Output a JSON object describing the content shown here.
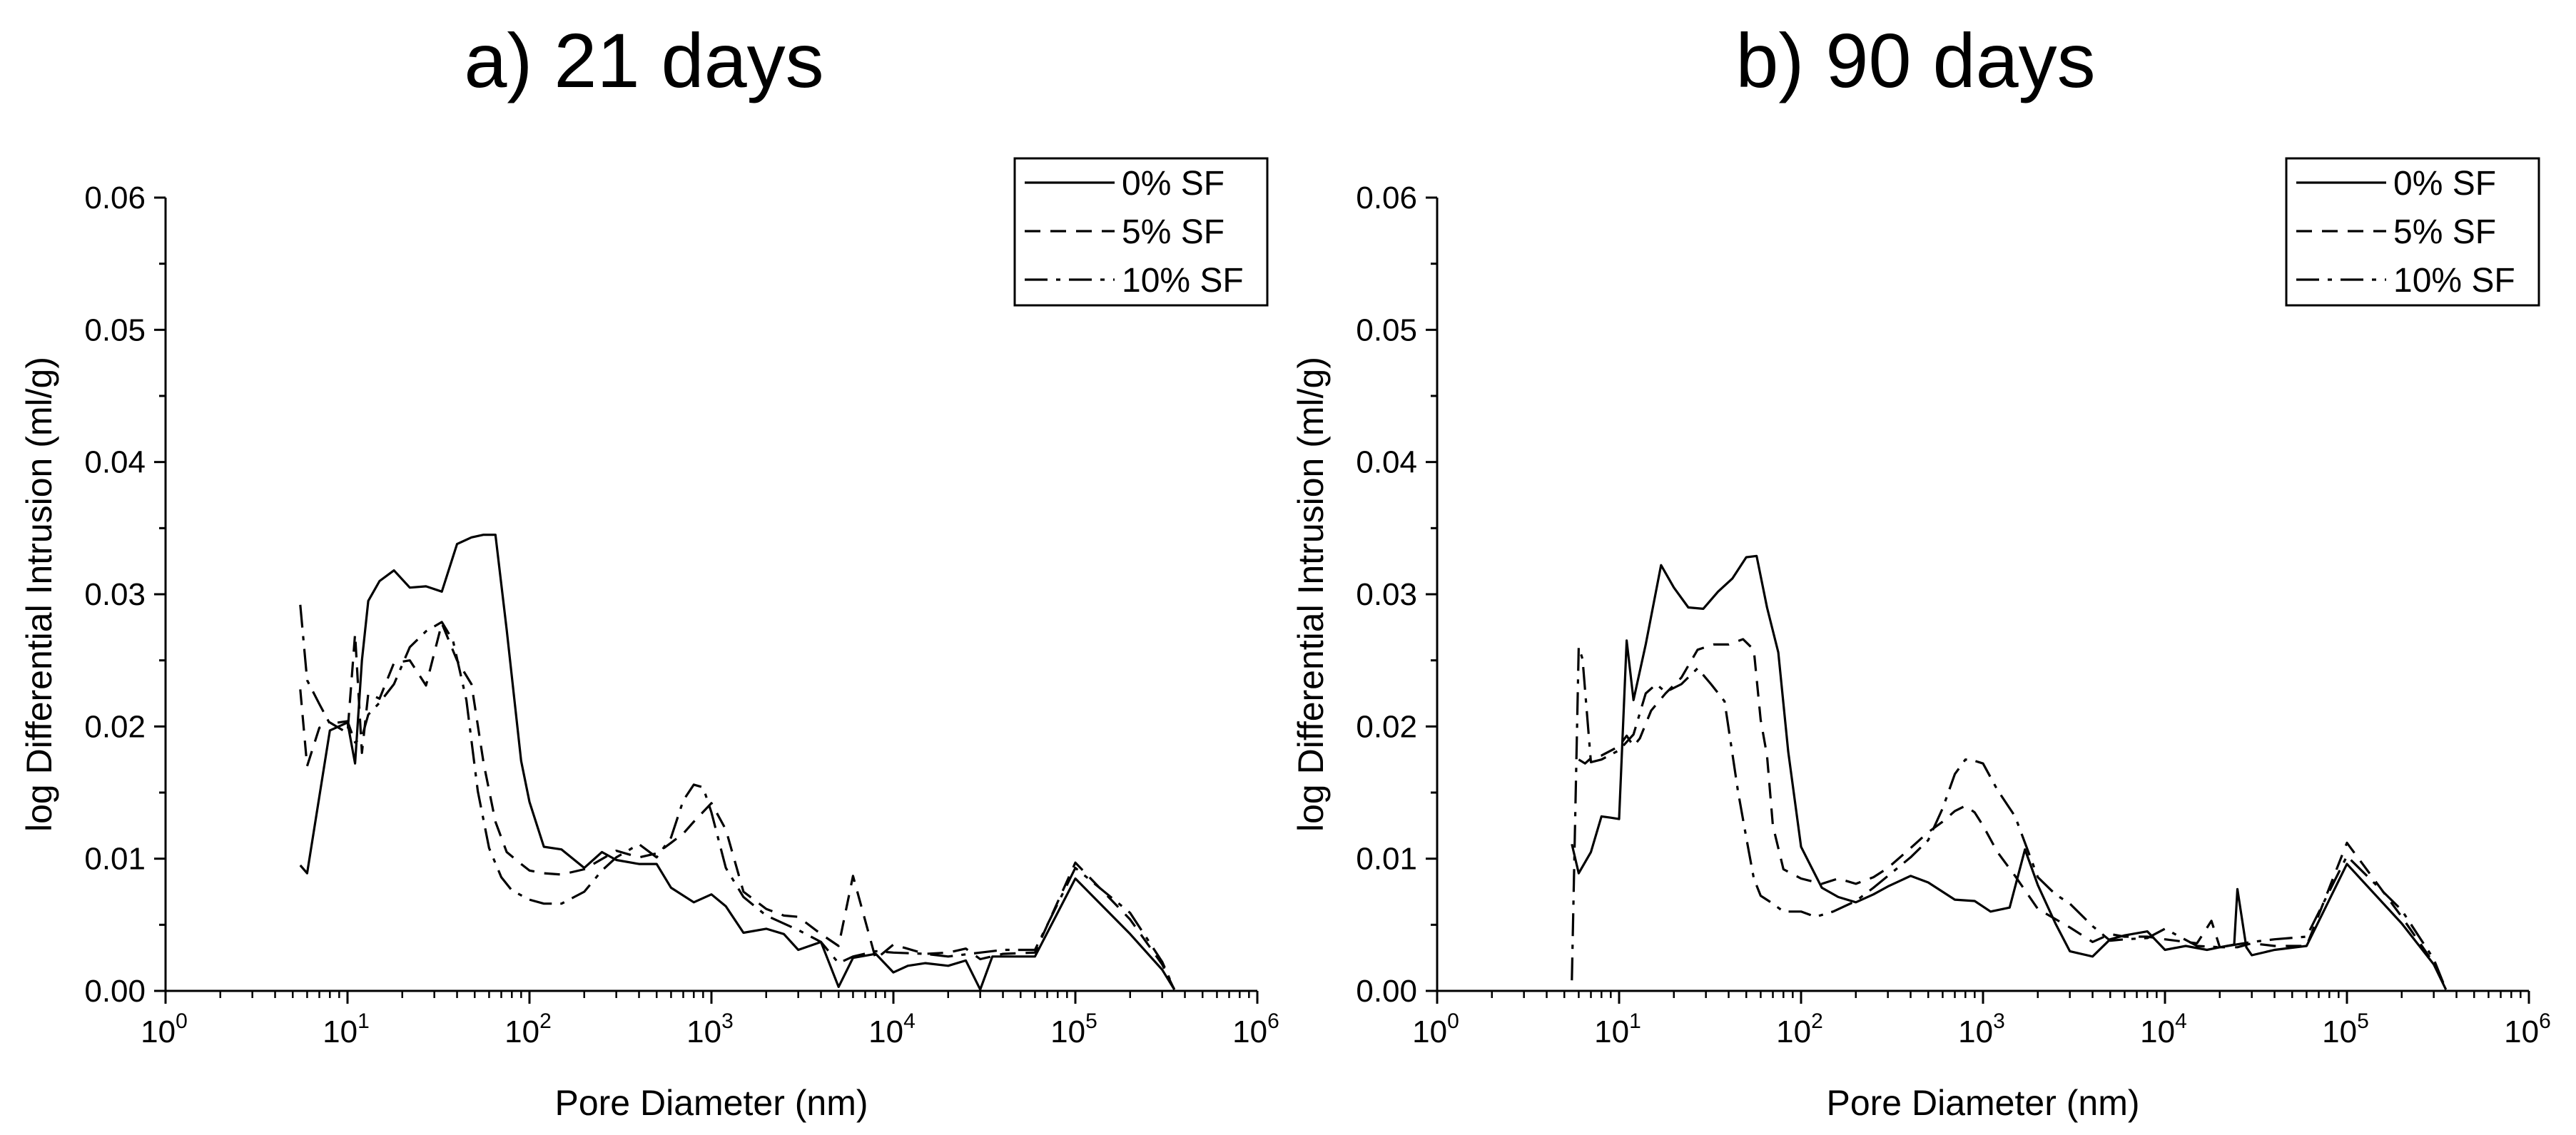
{
  "chart_data": [
    {
      "type": "line",
      "title": "a) 21 days",
      "xlabel": "Pore Diameter (nm)",
      "ylabel": "log Differential Intrusion (ml/g)",
      "x_scale": "log",
      "xlim": [
        1,
        1000000
      ],
      "ylim": [
        0,
        0.06
      ],
      "x_ticks": [
        {
          "base": "10",
          "exp": "0"
        },
        {
          "base": "10",
          "exp": "1"
        },
        {
          "base": "10",
          "exp": "2"
        },
        {
          "base": "10",
          "exp": "3"
        },
        {
          "base": "10",
          "exp": "4"
        },
        {
          "base": "10",
          "exp": "5"
        },
        {
          "base": "10",
          "exp": "6"
        }
      ],
      "y_ticks": [
        "0.00",
        "0.01",
        "0.02",
        "0.03",
        "0.04",
        "0.05",
        "0.06"
      ],
      "legend_position": "top-right",
      "series": [
        {
          "name": "0% SF",
          "style": "solid",
          "x": [
            5.5,
            6,
            8,
            10,
            11,
            12,
            13,
            15,
            18,
            22,
            27,
            33,
            40,
            48,
            56,
            65,
            75,
            90,
            100,
            120,
            150,
            200,
            250,
            300,
            400,
            500,
            600,
            800,
            1000,
            1200,
            1500,
            2000,
            2500,
            3000,
            4000,
            5000,
            6000,
            8000,
            10000,
            12000,
            15000,
            20000,
            25000,
            30000,
            35000,
            50000,
            60000,
            100000,
            200000,
            300000,
            350000
          ],
          "y": [
            0.0095,
            0.0089,
            0.0197,
            0.0203,
            0.0172,
            0.025,
            0.0295,
            0.031,
            0.0318,
            0.0305,
            0.0306,
            0.0302,
            0.0338,
            0.0343,
            0.0345,
            0.0345,
            0.0273,
            0.0174,
            0.0143,
            0.0109,
            0.0107,
            0.0093,
            0.0105,
            0.0099,
            0.0096,
            0.0096,
            0.0078,
            0.0067,
            0.0073,
            0.0064,
            0.0044,
            0.0047,
            0.0043,
            0.0031,
            0.0037,
            0.0003,
            0.0025,
            0.0028,
            0.0014,
            0.0019,
            0.0021,
            0.0019,
            0.0023,
            0.0001,
            0.0026,
            0.0026,
            0.0026,
            0.0085,
            0.0043,
            0.0016,
            0.0001
          ]
        },
        {
          "name": "5% SF",
          "style": "dashed",
          "x": [
            5.5,
            6,
            7,
            8,
            10,
            11,
            12,
            13,
            15,
            18,
            22,
            27,
            33,
            40,
            48,
            56,
            65,
            75,
            90,
            100,
            120,
            150,
            200,
            300,
            400,
            500,
            600,
            700,
            800,
            1000,
            1200,
            1500,
            2000,
            2500,
            3000,
            4000,
            5000,
            6000,
            8000,
            10000,
            15000,
            20000,
            25000,
            30000,
            40000,
            60000,
            100000,
            200000,
            300000,
            350000
          ],
          "y": [
            0.0228,
            0.017,
            0.0199,
            0.0203,
            0.0195,
            0.027,
            0.018,
            0.0225,
            0.0221,
            0.0248,
            0.025,
            0.0231,
            0.0278,
            0.025,
            0.0232,
            0.0172,
            0.0128,
            0.0105,
            0.0096,
            0.0091,
            0.0089,
            0.0088,
            0.0092,
            0.0106,
            0.0101,
            0.0104,
            0.0112,
            0.0119,
            0.0128,
            0.0142,
            0.0122,
            0.0075,
            0.0062,
            0.0057,
            0.0056,
            0.0043,
            0.0034,
            0.0087,
            0.0024,
            0.0035,
            0.0028,
            0.0029,
            0.0032,
            0.0024,
            0.0028,
            0.0029,
            0.0097,
            0.0054,
            0.002,
            0.0001
          ]
        },
        {
          "name": "10% SF",
          "style": "dashdot",
          "x": [
            5.5,
            6,
            7,
            8,
            10,
            11,
            12,
            13,
            15,
            18,
            22,
            27,
            33,
            38,
            45,
            52,
            60,
            70,
            80,
            100,
            120,
            150,
            200,
            250,
            300,
            400,
            500,
            600,
            700,
            800,
            900,
            1000,
            1200,
            1500,
            2000,
            3000,
            4000,
            5000,
            6000,
            8000,
            10000,
            15000,
            20000,
            30000,
            40000,
            60000,
            100000,
            200000,
            300000,
            350000
          ],
          "y": [
            0.0292,
            0.0235,
            0.0217,
            0.0202,
            0.0204,
            0.0188,
            0.0192,
            0.0209,
            0.0218,
            0.0232,
            0.026,
            0.0272,
            0.0279,
            0.0265,
            0.022,
            0.0151,
            0.0108,
            0.0086,
            0.0076,
            0.0069,
            0.0066,
            0.0066,
            0.0075,
            0.0091,
            0.0101,
            0.0111,
            0.0101,
            0.0116,
            0.0144,
            0.0156,
            0.0154,
            0.0135,
            0.0093,
            0.0071,
            0.0057,
            0.0046,
            0.0037,
            0.0021,
            0.0026,
            0.003,
            0.0029,
            0.0028,
            0.0026,
            0.0029,
            0.0031,
            0.0031,
            0.0093,
            0.0059,
            0.0022,
            0.0001
          ]
        }
      ]
    },
    {
      "type": "line",
      "title": "b) 90 days",
      "xlabel": "Pore Diameter (nm)",
      "ylabel": "log Differential Intrusion (ml/g)",
      "x_scale": "log",
      "xlim": [
        1,
        1000000
      ],
      "ylim": [
        0,
        0.06
      ],
      "x_ticks": [
        {
          "base": "10",
          "exp": "0"
        },
        {
          "base": "10",
          "exp": "1"
        },
        {
          "base": "10",
          "exp": "2"
        },
        {
          "base": "10",
          "exp": "3"
        },
        {
          "base": "10",
          "exp": "4"
        },
        {
          "base": "10",
          "exp": "5"
        },
        {
          "base": "10",
          "exp": "6"
        }
      ],
      "y_ticks": [
        "0.00",
        "0.01",
        "0.02",
        "0.03",
        "0.04",
        "0.05",
        "0.06"
      ],
      "legend_position": "top-right",
      "series": [
        {
          "name": "0% SF",
          "style": "solid",
          "x": [
            5.5,
            6,
            7,
            8,
            9,
            10,
            11,
            12,
            14,
            17,
            20,
            24,
            29,
            35,
            42,
            50,
            57,
            65,
            75,
            85,
            100,
            130,
            160,
            200,
            250,
            300,
            400,
            500,
            700,
            900,
            1100,
            1400,
            1700,
            2000,
            2500,
            3000,
            4000,
            5000,
            6000,
            8000,
            10000,
            13000,
            17000,
            20000,
            24000,
            25000,
            28000,
            30000,
            40000,
            60000,
            100000,
            200000,
            300000,
            350000
          ],
          "y": [
            0.0111,
            0.0089,
            0.0105,
            0.0132,
            0.0131,
            0.013,
            0.0265,
            0.022,
            0.0262,
            0.0322,
            0.0305,
            0.029,
            0.0289,
            0.0302,
            0.0312,
            0.0328,
            0.0329,
            0.029,
            0.0256,
            0.0181,
            0.0109,
            0.0078,
            0.0071,
            0.0067,
            0.0073,
            0.0079,
            0.0087,
            0.0082,
            0.0069,
            0.0068,
            0.006,
            0.0063,
            0.0107,
            0.008,
            0.0051,
            0.003,
            0.0026,
            0.0039,
            0.0042,
            0.0045,
            0.0031,
            0.0034,
            0.0031,
            0.0033,
            0.0035,
            0.0077,
            0.0033,
            0.0027,
            0.0031,
            0.0034,
            0.0096,
            0.0051,
            0.002,
            0.0001
          ]
        },
        {
          "name": "5% SF",
          "style": "dashed",
          "x": [
            6,
            6.5,
            7,
            8,
            10,
            11,
            12,
            13,
            15,
            18,
            22,
            27,
            33,
            40,
            48,
            55,
            60,
            65,
            70,
            80,
            100,
            130,
            160,
            200,
            250,
            300,
            400,
            500,
            600,
            700,
            800,
            900,
            1000,
            1200,
            1500,
            2000,
            3000,
            4000,
            5000,
            6000,
            8000,
            10000,
            15000,
            18000,
            20000,
            25000,
            30000,
            40000,
            60000,
            100000,
            200000,
            300000,
            350000
          ],
          "y": [
            0.0175,
            0.0172,
            0.0176,
            0.0178,
            0.0185,
            0.0193,
            0.0185,
            0.0191,
            0.0212,
            0.0225,
            0.0237,
            0.0258,
            0.0262,
            0.0262,
            0.0266,
            0.0258,
            0.0205,
            0.0178,
            0.0125,
            0.0092,
            0.0085,
            0.0081,
            0.0085,
            0.0081,
            0.0086,
            0.0093,
            0.0108,
            0.012,
            0.0128,
            0.0136,
            0.014,
            0.0135,
            0.0125,
            0.0105,
            0.0087,
            0.0062,
            0.0048,
            0.0037,
            0.0043,
            0.0041,
            0.0041,
            0.0039,
            0.0036,
            0.0053,
            0.0033,
            0.0033,
            0.0036,
            0.0034,
            0.0034,
            0.0112,
            0.0056,
            0.0021,
            0.0001
          ]
        },
        {
          "name": "10% SF",
          "style": "dashdot",
          "x": [
            5.5,
            6,
            6.3,
            7,
            8,
            10,
            12,
            14,
            16,
            18,
            22,
            27,
            32,
            38,
            45,
            50,
            55,
            60,
            70,
            80,
            100,
            120,
            150,
            200,
            250,
            300,
            400,
            500,
            600,
            700,
            800,
            900,
            1000,
            1200,
            1500,
            2000,
            2500,
            3000,
            4000,
            5000,
            6000,
            8000,
            10000,
            15000,
            20000,
            30000,
            40000,
            60000,
            100000,
            200000,
            300000,
            350000
          ],
          "y": [
            0.0008,
            0.026,
            0.0251,
            0.0173,
            0.0175,
            0.0182,
            0.0194,
            0.0225,
            0.0232,
            0.0226,
            0.0232,
            0.0244,
            0.0232,
            0.0219,
            0.0151,
            0.0116,
            0.0085,
            0.0072,
            0.0066,
            0.006,
            0.006,
            0.0056,
            0.006,
            0.0068,
            0.0078,
            0.0087,
            0.0101,
            0.0114,
            0.0138,
            0.0164,
            0.0175,
            0.0174,
            0.0172,
            0.0152,
            0.0132,
            0.0086,
            0.0073,
            0.0066,
            0.0049,
            0.0038,
            0.0039,
            0.004,
            0.0047,
            0.0034,
            0.0033,
            0.0037,
            0.0039,
            0.0041,
            0.0102,
            0.0061,
            0.0024,
            0.0001
          ]
        }
      ]
    }
  ]
}
